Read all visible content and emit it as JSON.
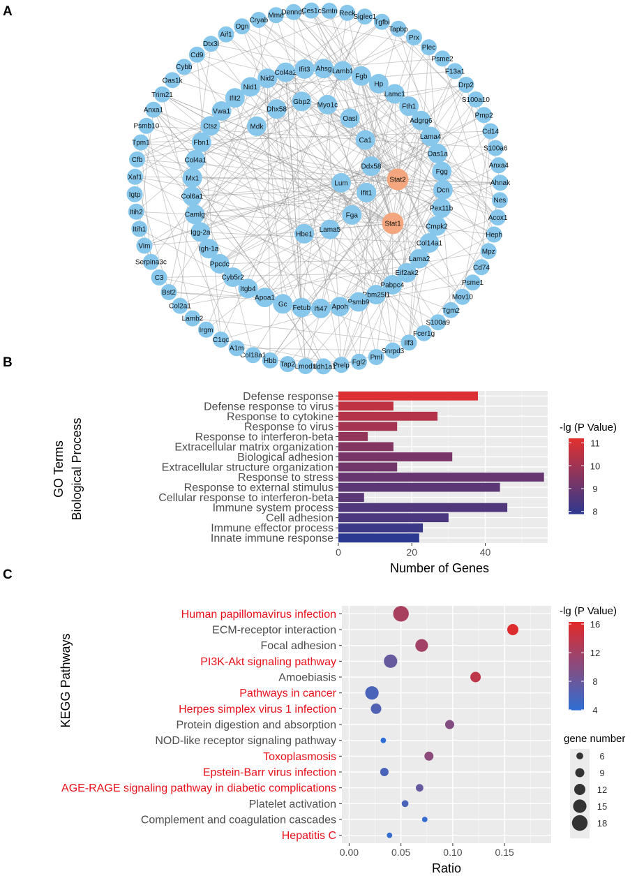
{
  "panels": {
    "a": "A",
    "b": "B",
    "c": "C"
  },
  "network": {
    "nodes": [
      "Tgfbi",
      "Tapbp",
      "Prx",
      "Plec",
      "Psme2",
      "F13a1",
      "Drp2",
      "S100a10",
      "Pmp2",
      "Cd14",
      "S100a6",
      "Anxa4",
      "Ahnak",
      "Nes",
      "Acox1",
      "Heph",
      "Mpz",
      "Cd74",
      "Psme1",
      "Mov10",
      "Tgm2",
      "S100a9",
      "Fcer1g",
      "Ilf3",
      "Snrpd3",
      "Pml",
      "Fgl2",
      "Prelp",
      "Aldh1a1",
      "Lmod1",
      "Tap2",
      "Hbb",
      "Col18a1",
      "A1m",
      "C1qc",
      "Irgm",
      "Lamb2",
      "Col2a1",
      "Bst2",
      "C3",
      "Serpina3c",
      "Vim",
      "Itih1",
      "Itih2",
      "Igtp",
      "Xaf1",
      "Cfb",
      "Tpm1",
      "Psmb10",
      "Anxa1",
      "Trim21",
      "Oas1k",
      "Cybb",
      "Cd9",
      "Dtx3l",
      "Aif1",
      "Ogn",
      "Cryab",
      "Mme",
      "Dennd3",
      "Ces1c",
      "Smtn",
      "Reck",
      "Siglec1",
      "Ahsg",
      "Lamb1",
      "Fgb",
      "Hp",
      "Lamc1",
      "Fth1",
      "Adgrg6",
      "Lama4",
      "Oas1a",
      "Fgg",
      "Dcn",
      "Pex11b",
      "Cmpk2",
      "Col14a1",
      "Lama2",
      "Eif2ak2",
      "Pabpc4",
      "Rbm25l1",
      "Psmb9",
      "Apoh",
      "Ifi47",
      "Fetub",
      "Gc",
      "Apoa1",
      "Itgb4",
      "Cyb5r2",
      "Ppcdc",
      "Igh-1a",
      "Igg-2a",
      "Camlg",
      "Col6a1",
      "Mx1",
      "Col4a1",
      "Fbn1",
      "Ctsz",
      "Vwa1",
      "Ifit2",
      "Nid1",
      "Nid2",
      "Col4a2",
      "Ifit3",
      "Mdk",
      "Dhx58",
      "Gbp2",
      "Myo1c",
      "Oasl",
      "Ca1",
      "Ddx58",
      "Ifit1",
      "Fga",
      "Lama5",
      "Hbe1",
      "Lum",
      "Stat2",
      "Stat1"
    ],
    "hubs": [
      "Stat2",
      "Stat1"
    ]
  },
  "chart_data": [
    {
      "type": "bar",
      "orientation": "horizontal",
      "ylabel_line1": "GO Terms",
      "ylabel_line2": "Biological Process",
      "xlabel": "Number of Genes",
      "xlim": [
        0,
        57
      ],
      "xticks": [
        0,
        20,
        40
      ],
      "categories": [
        "Defense response",
        "Defense response to virus",
        "Response to cytokine",
        "Response to virus",
        "Response to interferon-beta",
        "Extracellular matrix organization",
        "Biological adhesion",
        "Extracellular structure organization",
        "Response to stress",
        "Response to external stimulus",
        "Cellular response to interferon-beta",
        "Immune system process",
        "Cell adhesion",
        "Immune effector process",
        "Innate immune response"
      ],
      "values": [
        38,
        15,
        27,
        16,
        8,
        15,
        31,
        16,
        56,
        44,
        7,
        46,
        30,
        23,
        22
      ],
      "color_values": [
        11.1,
        10.6,
        10.4,
        10.1,
        9.8,
        9.5,
        9.3,
        9.2,
        9.0,
        8.8,
        8.8,
        8.6,
        8.5,
        8.2,
        7.9
      ],
      "legend": {
        "title": "-lg (P Value)",
        "ticks": [
          8,
          9,
          10,
          11
        ],
        "range": [
          7.9,
          11.2
        ],
        "low_color": "#2b3990",
        "high_color": "#e03131"
      }
    },
    {
      "type": "scatter",
      "ylabel": "KEGG Pathways",
      "xlabel": "Ratio",
      "xlim": [
        -0.007,
        0.195
      ],
      "xticks": [
        0.0,
        0.05,
        0.1,
        0.15
      ],
      "xtick_labels": [
        "0.00",
        "0.05",
        "0.10",
        "0.15"
      ],
      "categories": [
        "Human papillomavirus infection",
        "ECM-receptor interaction",
        "Focal adhesion",
        "PI3K-Akt signaling pathway",
        "Amoebiasis",
        "Pathways in cancer",
        "Herpes simplex virus 1 infection",
        "Protein digestion and absorption",
        "NOD-like receptor signaling pathway",
        "Toxoplasmosis",
        "Epstein-Barr virus infection",
        "AGE-RAGE signaling pathway in diabetic complications",
        "Platelet activation",
        "Complement and coagulation cascades",
        "Hepatitis C"
      ],
      "highlighted": [
        true,
        false,
        false,
        true,
        false,
        true,
        true,
        false,
        false,
        true,
        true,
        true,
        false,
        false,
        true
      ],
      "highlight_color": "#e8101a",
      "normal_color": "#4d4d4d",
      "ratio": [
        0.05,
        0.158,
        0.07,
        0.04,
        0.122,
        0.022,
        0.026,
        0.097,
        0.033,
        0.077,
        0.034,
        0.068,
        0.054,
        0.073,
        0.039
      ],
      "gene_number": [
        18,
        12,
        14,
        15,
        11,
        15,
        11,
        9,
        4,
        9,
        8,
        7,
        6,
        4,
        4
      ],
      "p_value_lg": [
        12.5,
        16.0,
        12.0,
        8.0,
        14.0,
        6.0,
        6.5,
        10.0,
        4.0,
        10.5,
        6.0,
        8.0,
        6.0,
        4.5,
        4.5
      ],
      "color_legend": {
        "title": "-lg (P Value)",
        "ticks": [
          4,
          8,
          12,
          16
        ],
        "range": [
          4,
          16.3
        ],
        "low_color": "#2d6fd6",
        "high_color": "#e02a2a"
      },
      "size_legend": {
        "title": "gene number",
        "values": [
          6,
          9,
          12,
          15,
          18
        ]
      }
    }
  ]
}
